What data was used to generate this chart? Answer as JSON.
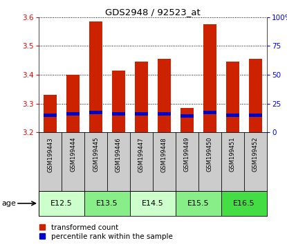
{
  "title": "GDS2948 / 92523_at",
  "samples": [
    "GSM199443",
    "GSM199444",
    "GSM199445",
    "GSM199446",
    "GSM199447",
    "GSM199448",
    "GSM199449",
    "GSM199450",
    "GSM199451",
    "GSM199452"
  ],
  "transformed_counts": [
    3.33,
    3.4,
    3.585,
    3.415,
    3.445,
    3.455,
    3.285,
    3.575,
    3.445,
    3.455
  ],
  "percentile_ranks": [
    15,
    16,
    17,
    16,
    16,
    16,
    14,
    17,
    15,
    15
  ],
  "ymin": 3.2,
  "ymax": 3.6,
  "yticks": [
    3.2,
    3.3,
    3.4,
    3.5,
    3.6
  ],
  "right_yticks": [
    0,
    25,
    50,
    75,
    100
  ],
  "bar_color": "#cc2200",
  "percentile_color": "#0000cc",
  "age_groups": [
    {
      "label": "E12.5",
      "samples": [
        0,
        1
      ],
      "color": "#ccffcc"
    },
    {
      "label": "E13.5",
      "samples": [
        2,
        3
      ],
      "color": "#88ee88"
    },
    {
      "label": "E14.5",
      "samples": [
        4,
        5
      ],
      "color": "#ccffcc"
    },
    {
      "label": "E15.5",
      "samples": [
        6,
        7
      ],
      "color": "#88ee88"
    },
    {
      "label": "E16.5",
      "samples": [
        8,
        9
      ],
      "color": "#44dd44"
    }
  ],
  "sample_area_color": "#cccccc",
  "legend_red_label": "transformed count",
  "legend_blue_label": "percentile rank within the sample",
  "bar_width": 0.55,
  "percentile_bar_height": 0.012
}
